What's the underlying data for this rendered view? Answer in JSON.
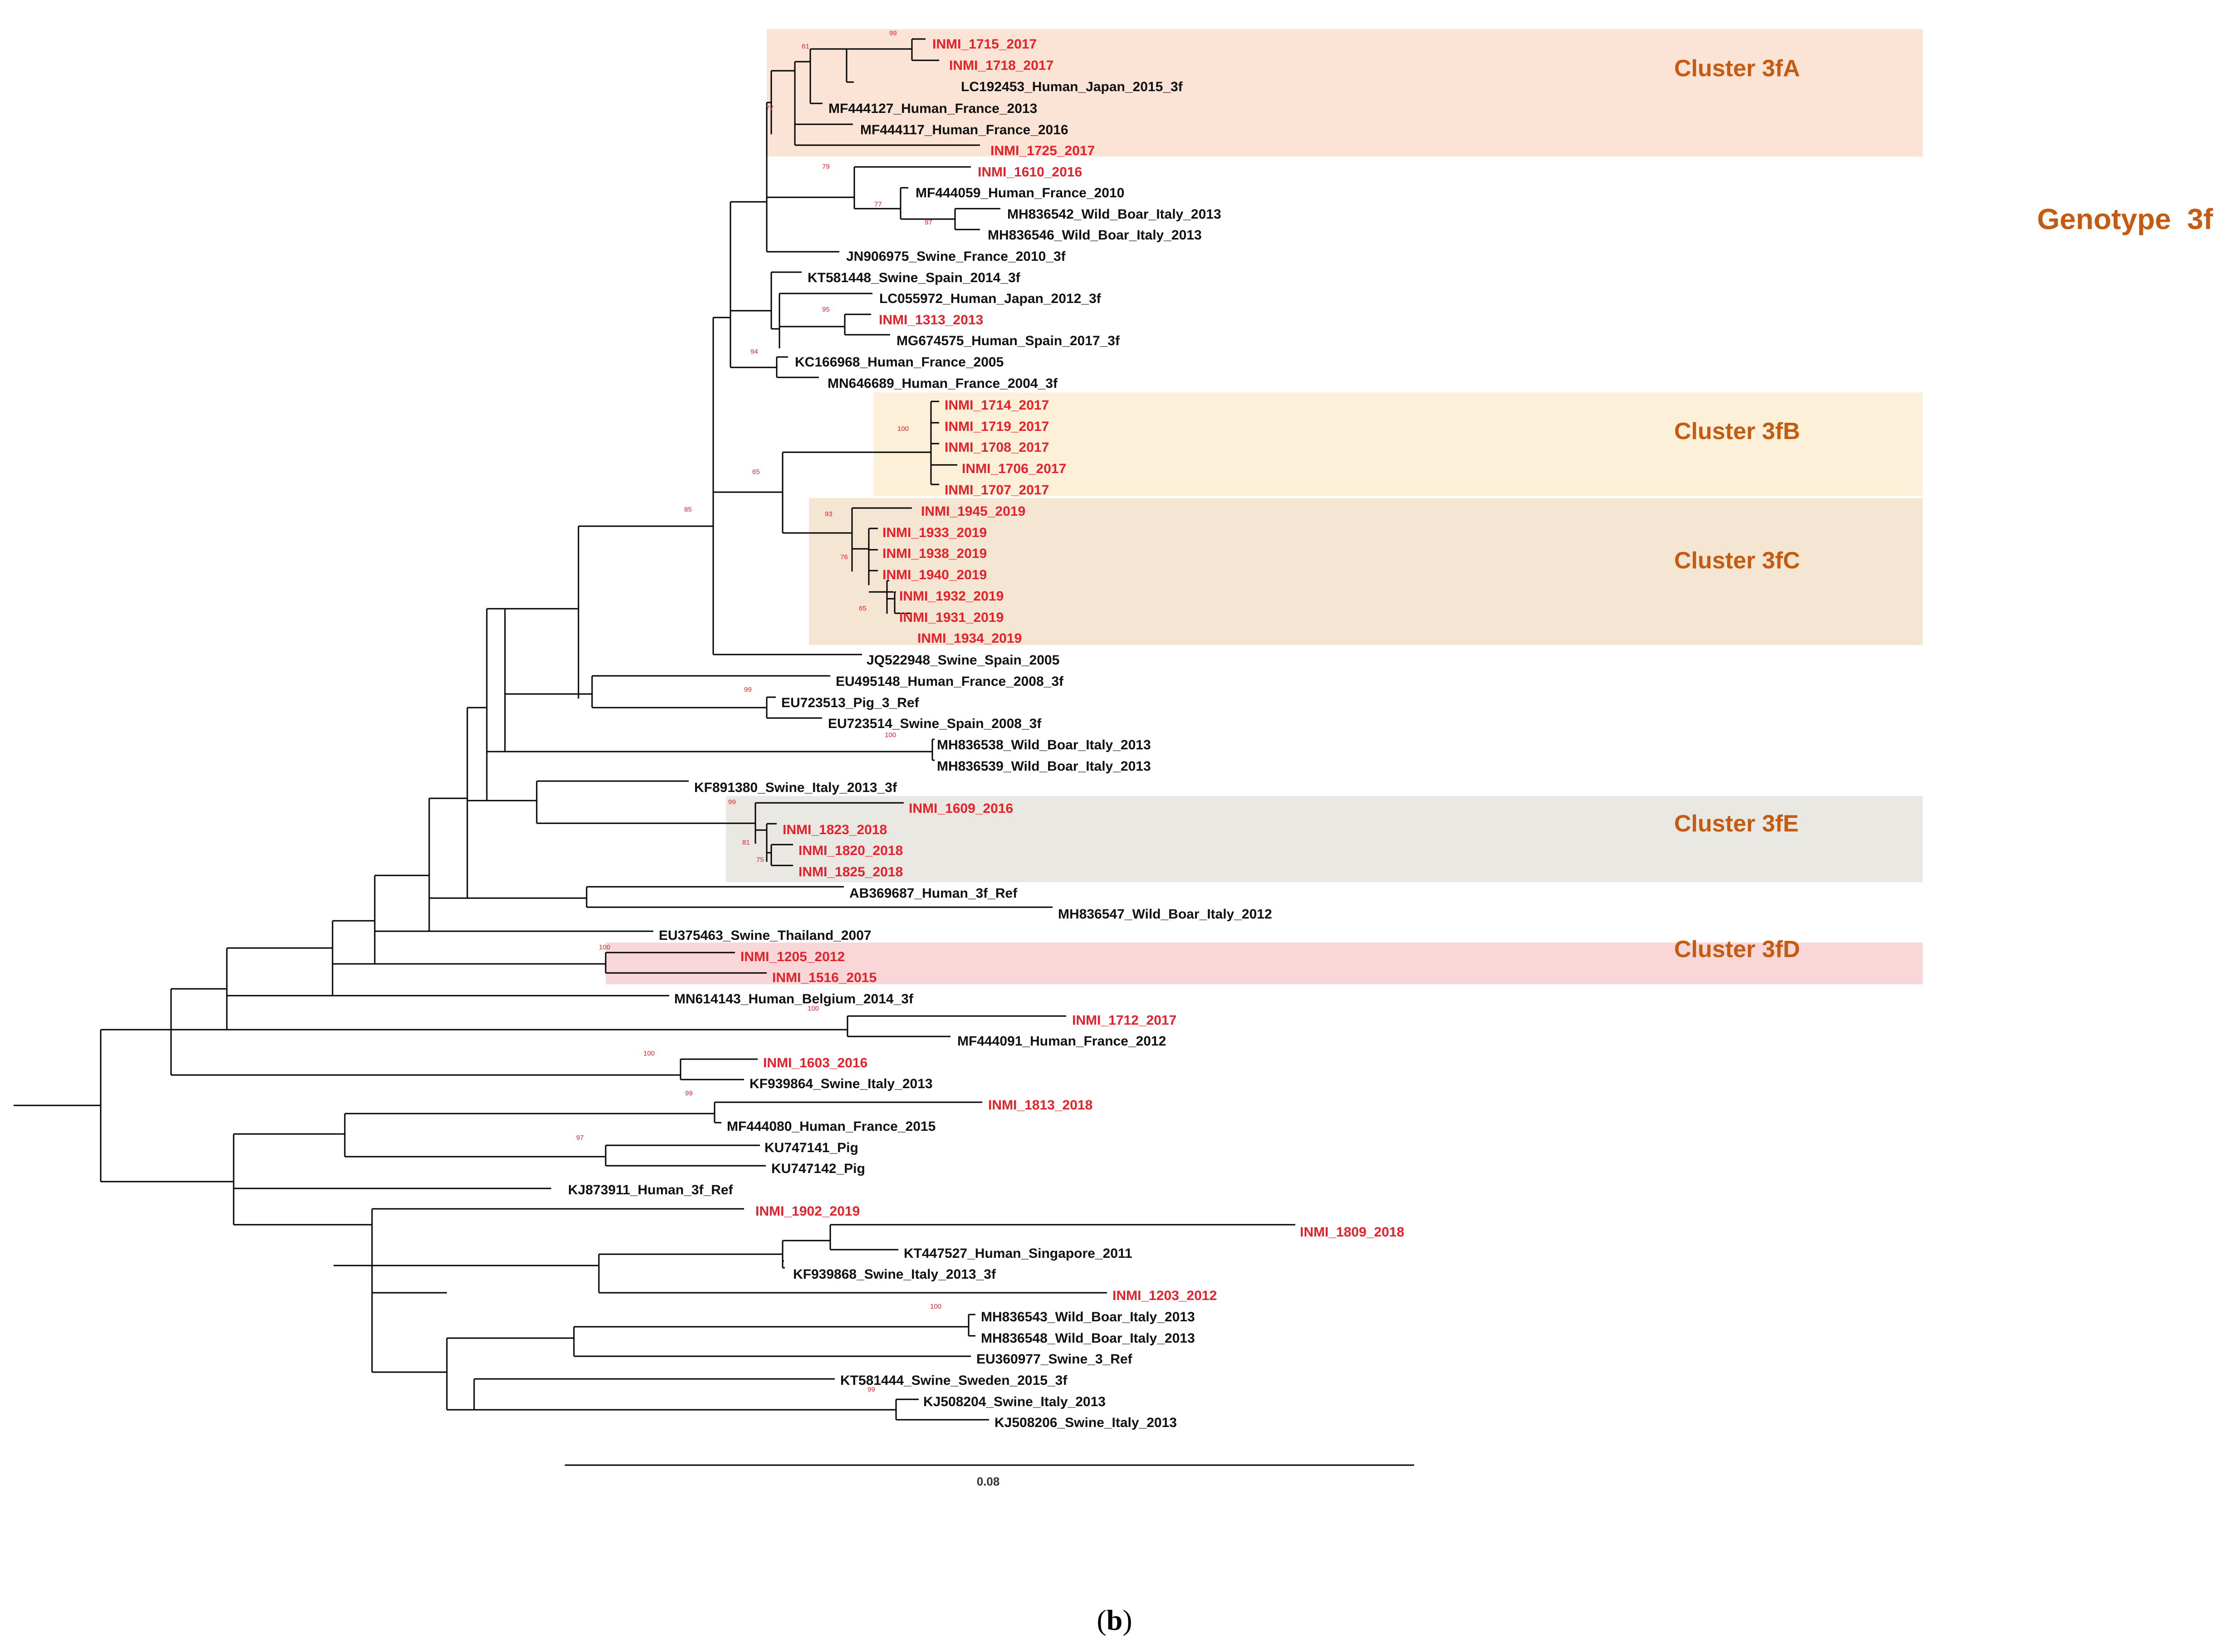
{
  "colors": {
    "highlight": "#e8202a",
    "normal": "#111111",
    "branch": "#000000",
    "label_accent": "#c55a11",
    "box_3fA": "#fbe3d5",
    "box_3fB": "#fdf0d9",
    "box_3fC": "#f4e6d3",
    "box_3fE": "#e9e8e3",
    "box_3fD": "#f9d7d9"
  },
  "genotype_label": "Genotype  3f",
  "clusters": [
    {
      "id": "3fA",
      "label": "Cluster 3fA"
    },
    {
      "id": "3fB",
      "label": "Cluster 3fB"
    },
    {
      "id": "3fC",
      "label": "Cluster 3fC"
    },
    {
      "id": "3fE",
      "label": "Cluster 3fE"
    },
    {
      "id": "3fD",
      "label": "Cluster 3fD"
    }
  ],
  "scale_bar": {
    "label": "0.08"
  },
  "caption": {
    "open": "(",
    "letter": "b",
    "close": ")"
  },
  "leaves": [
    {
      "name": "INMI_1715_2017",
      "hl": true
    },
    {
      "name": "INMI_1718_2017",
      "hl": true
    },
    {
      "name": "LC192453_Human_Japan_2015_3f",
      "hl": false
    },
    {
      "name": "MF444127_Human_France_2013",
      "hl": false
    },
    {
      "name": "MF444117_Human_France_2016",
      "hl": false
    },
    {
      "name": "INMI_1725_2017",
      "hl": true
    },
    {
      "name": "INMI_1610_2016",
      "hl": true
    },
    {
      "name": "MF444059_Human_France_2010",
      "hl": false
    },
    {
      "name": "MH836542_Wild_Boar_Italy_2013",
      "hl": false
    },
    {
      "name": "MH836546_Wild_Boar_Italy_2013",
      "hl": false
    },
    {
      "name": "JN906975_Swine_France_2010_3f",
      "hl": false
    },
    {
      "name": "KT581448_Swine_Spain_2014_3f",
      "hl": false
    },
    {
      "name": "LC055972_Human_Japan_2012_3f",
      "hl": false
    },
    {
      "name": "INMI_1313_2013",
      "hl": true
    },
    {
      "name": "MG674575_Human_Spain_2017_3f",
      "hl": false
    },
    {
      "name": "KC166968_Human_France_2005",
      "hl": false
    },
    {
      "name": "MN646689_Human_France_2004_3f",
      "hl": false
    },
    {
      "name": "INMI_1714_2017",
      "hl": true
    },
    {
      "name": "INMI_1719_2017",
      "hl": true
    },
    {
      "name": "INMI_1708_2017",
      "hl": true
    },
    {
      "name": "INMI_1706_2017",
      "hl": true
    },
    {
      "name": "INMI_1707_2017",
      "hl": true
    },
    {
      "name": "INMI_1945_2019",
      "hl": true
    },
    {
      "name": "INMI_1933_2019",
      "hl": true
    },
    {
      "name": "INMI_1938_2019",
      "hl": true
    },
    {
      "name": "INMI_1940_2019",
      "hl": true
    },
    {
      "name": "INMI_1932_2019",
      "hl": true
    },
    {
      "name": "INMI_1931_2019",
      "hl": true
    },
    {
      "name": "INMI_1934_2019",
      "hl": true
    },
    {
      "name": "JQ522948_Swine_Spain_2005",
      "hl": false
    },
    {
      "name": "EU495148_Human_France_2008_3f",
      "hl": false
    },
    {
      "name": "EU723513_Pig_3_Ref",
      "hl": false
    },
    {
      "name": "EU723514_Swine_Spain_2008_3f",
      "hl": false
    },
    {
      "name": "MH836538_Wild_Boar_Italy_2013",
      "hl": false
    },
    {
      "name": "MH836539_Wild_Boar_Italy_2013",
      "hl": false
    },
    {
      "name": "KF891380_Swine_Italy_2013_3f",
      "hl": false
    },
    {
      "name": "INMI_1609_2016",
      "hl": true
    },
    {
      "name": "INMI_1823_2018",
      "hl": true
    },
    {
      "name": "INMI_1820_2018",
      "hl": true
    },
    {
      "name": "INMI_1825_2018",
      "hl": true
    },
    {
      "name": "AB369687_Human_3f_Ref",
      "hl": false
    },
    {
      "name": "MH836547_Wild_Boar_Italy_2012",
      "hl": false
    },
    {
      "name": "EU375463_Swine_Thailand_2007",
      "hl": false
    },
    {
      "name": "INMI_1205_2012",
      "hl": true
    },
    {
      "name": "INMI_1516_2015",
      "hl": true
    },
    {
      "name": "MN614143_Human_Belgium_2014_3f",
      "hl": false
    },
    {
      "name": "INMI_1712_2017",
      "hl": true
    },
    {
      "name": "MF444091_Human_France_2012",
      "hl": false
    },
    {
      "name": "INMI_1603_2016",
      "hl": true
    },
    {
      "name": "KF939864_Swine_Italy_2013",
      "hl": false
    },
    {
      "name": "INMI_1813_2018",
      "hl": true
    },
    {
      "name": "MF444080_Human_France_2015",
      "hl": false
    },
    {
      "name": "KU747141_Pig",
      "hl": false
    },
    {
      "name": "KU747142_Pig",
      "hl": false
    },
    {
      "name": "KJ873911_Human_3f_Ref",
      "hl": false
    },
    {
      "name": "INMI_1902_2019",
      "hl": true
    },
    {
      "name": "INMI_1809_2018",
      "hl": true
    },
    {
      "name": "KT447527_Human_Singapore_2011",
      "hl": false
    },
    {
      "name": "KF939868_Swine_Italy_2013_3f",
      "hl": false
    },
    {
      "name": "INMI_1203_2012",
      "hl": true
    },
    {
      "name": "MH836543_Wild_Boar_Italy_2013",
      "hl": false
    },
    {
      "name": "MH836548_Wild_Boar_Italy_2013",
      "hl": false
    },
    {
      "name": "EU360977_Swine_3_Ref",
      "hl": false
    },
    {
      "name": "KT581444_Swine_Sweden_2015_3f",
      "hl": false
    },
    {
      "name": "KJ508204_Swine_Italy_2013",
      "hl": false
    },
    {
      "name": "KJ508206_Swine_Italy_2013",
      "hl": false
    }
  ],
  "bootstrap": [
    "99",
    "61",
    "77",
    "79",
    "77",
    "97",
    "95",
    "94",
    "100",
    "65",
    "85",
    "93",
    "76",
    "65",
    "99",
    "100",
    "99",
    "81",
    "75",
    "100",
    "100",
    "100",
    "99",
    "97",
    "100",
    "99"
  ]
}
